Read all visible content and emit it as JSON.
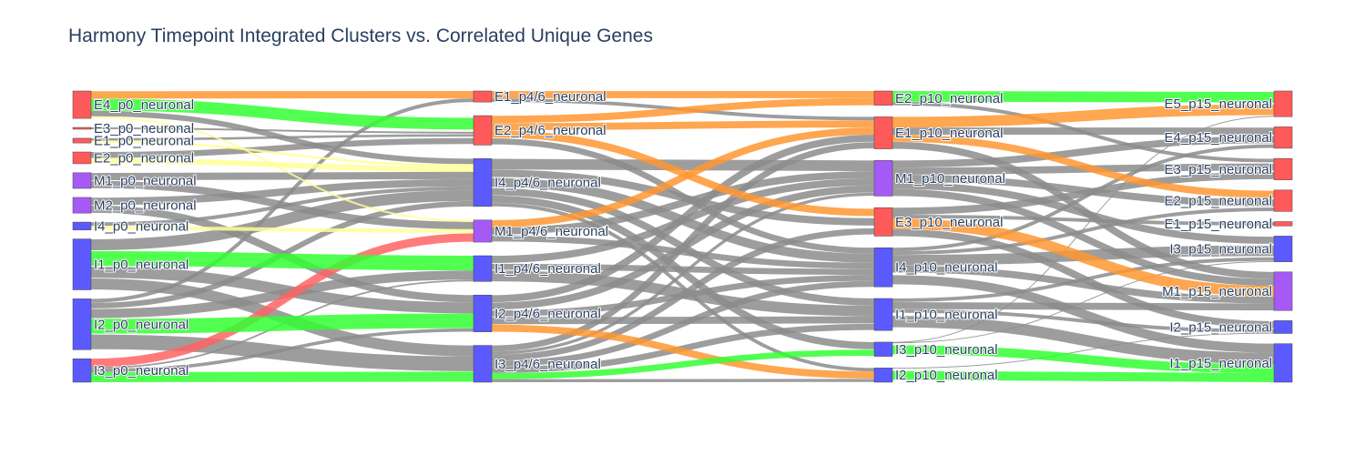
{
  "title": "Harmony Timepoint Integrated Clusters vs. Correlated Unique Genes",
  "colors": {
    "E": "#ff5a5a",
    "I": "#5a5aff",
    "M": "#a55af5",
    "link_gray": "#8c8c8c",
    "link_green": "#32ff32",
    "link_orange": "#ff9632",
    "link_yellow": "#ffff96",
    "link_red": "#ff6464",
    "node_border": "#444444"
  },
  "chart_data": {
    "type": "sankey",
    "columns": [
      [
        {
          "id": "E4_p0",
          "label": "E4_p0_neuronal",
          "type": "E",
          "value": 7
        },
        {
          "id": "E3_p0",
          "label": "E3_p0_neuronal",
          "type": "E",
          "value": 0.4
        },
        {
          "id": "E1_p0",
          "label": "E1_p0_neuronal",
          "type": "E",
          "value": 1.2
        },
        {
          "id": "E2_p0",
          "label": "E2_p0_neuronal",
          "type": "E",
          "value": 3
        },
        {
          "id": "M1_p0",
          "label": "M1_p0_neuronal",
          "type": "M",
          "value": 4
        },
        {
          "id": "M2_p0",
          "label": "M2_p0_neuronal",
          "type": "M",
          "value": 4
        },
        {
          "id": "I4_p0",
          "label": "I4_p0_neuronal",
          "type": "I",
          "value": 2
        },
        {
          "id": "I1_p0",
          "label": "I1_p0_neuronal",
          "type": "I",
          "value": 13
        },
        {
          "id": "I2_p0",
          "label": "I2_p0_neuronal",
          "type": "I",
          "value": 13
        },
        {
          "id": "I3_p0",
          "label": "I3_p0_neuronal",
          "type": "I",
          "value": 6
        }
      ],
      [
        {
          "id": "E1_p46",
          "label": "E1_p4/6_neuronal",
          "type": "E",
          "value": 3
        },
        {
          "id": "E2_p46",
          "label": "E2_p4/6_neuronal",
          "type": "E",
          "value": 8
        },
        {
          "id": "I4_p46",
          "label": "I4_p4/6_neuronal",
          "type": "I",
          "value": 13
        },
        {
          "id": "M1_p46",
          "label": "M1_p4/6_neuronal",
          "type": "M",
          "value": 6
        },
        {
          "id": "I1_p46",
          "label": "I1_p4/6_neuronal",
          "type": "I",
          "value": 7
        },
        {
          "id": "I2_p46",
          "label": "I2_p4/6_neuronal",
          "type": "I",
          "value": 10
        },
        {
          "id": "I3_p46",
          "label": "I3_p4/6_neuronal",
          "type": "I",
          "value": 10
        }
      ],
      [
        {
          "id": "E2_p10",
          "label": "E2_p10_neuronal",
          "type": "E",
          "value": 4
        },
        {
          "id": "E1_p10",
          "label": "E1_p10_neuronal",
          "type": "E",
          "value": 9
        },
        {
          "id": "M1_p10",
          "label": "M1_p10_neuronal",
          "type": "M",
          "value": 10
        },
        {
          "id": "E3_p10",
          "label": "E3_p10_neuronal",
          "type": "E",
          "value": 8
        },
        {
          "id": "I4_p10",
          "label": "I4_p10_neuronal",
          "type": "I",
          "value": 11
        },
        {
          "id": "I1_p10",
          "label": "I1_p10_neuronal",
          "type": "I",
          "value": 9
        },
        {
          "id": "I3_p10",
          "label": "I3_p10_neuronal",
          "type": "I",
          "value": 4
        },
        {
          "id": "I2_p10",
          "label": "I2_p10_neuronal",
          "type": "I",
          "value": 4
        }
      ],
      [
        {
          "id": "E5_p15",
          "label": "E5_p15_neuronal",
          "type": "E",
          "value": 6
        },
        {
          "id": "E4_p15",
          "label": "E4_p15_neuronal",
          "type": "E",
          "value": 5
        },
        {
          "id": "E3_p15",
          "label": "E3_p15_neuronal",
          "type": "E",
          "value": 5
        },
        {
          "id": "E2_p15",
          "label": "E2_p15_neuronal",
          "type": "E",
          "value": 5
        },
        {
          "id": "E1_p15",
          "label": "E1_p15_neuronal",
          "type": "E",
          "value": 1
        },
        {
          "id": "I3_p15",
          "label": "I3_p15_neuronal",
          "type": "I",
          "value": 6
        },
        {
          "id": "M1_p15",
          "label": "M1_p15_neuronal",
          "type": "M",
          "value": 9
        },
        {
          "id": "I2_p15",
          "label": "I2_p15_neuronal",
          "type": "I",
          "value": 3
        },
        {
          "id": "I1_p15",
          "label": "I1_p15_neuronal",
          "type": "I",
          "value": 9
        }
      ]
    ],
    "links": [
      {
        "s": "E4_p0",
        "t": "E1_p46",
        "v": 2,
        "c": "orange"
      },
      {
        "s": "E4_p0",
        "t": "E2_p46",
        "v": 3,
        "c": "green"
      },
      {
        "s": "E4_p0",
        "t": "I4_p46",
        "v": 1.5,
        "c": "gray"
      },
      {
        "s": "E4_p0",
        "t": "M1_p46",
        "v": 0.5,
        "c": "yellow"
      },
      {
        "s": "E3_p0",
        "t": "E2_p46",
        "v": 0.4,
        "c": "gray"
      },
      {
        "s": "E1_p0",
        "t": "E2_p46",
        "v": 0.6,
        "c": "gray"
      },
      {
        "s": "E1_p0",
        "t": "I4_p46",
        "v": 0.6,
        "c": "yellow"
      },
      {
        "s": "E2_p0",
        "t": "E2_p46",
        "v": 1.5,
        "c": "gray"
      },
      {
        "s": "E2_p0",
        "t": "I4_p46",
        "v": 1.5,
        "c": "yellow"
      },
      {
        "s": "M1_p0",
        "t": "I4_p46",
        "v": 2,
        "c": "gray"
      },
      {
        "s": "M1_p0",
        "t": "M1_p46",
        "v": 2,
        "c": "gray"
      },
      {
        "s": "M2_p0",
        "t": "I4_p46",
        "v": 2,
        "c": "gray"
      },
      {
        "s": "M2_p0",
        "t": "I2_p46",
        "v": 2,
        "c": "gray"
      },
      {
        "s": "I4_p0",
        "t": "I4_p46",
        "v": 1,
        "c": "gray"
      },
      {
        "s": "I4_p0",
        "t": "M1_p46",
        "v": 1,
        "c": "yellow"
      },
      {
        "s": "I1_p0",
        "t": "I4_p46",
        "v": 3,
        "c": "gray"
      },
      {
        "s": "I1_p0",
        "t": "I1_p46",
        "v": 4,
        "c": "green"
      },
      {
        "s": "I1_p0",
        "t": "I2_p46",
        "v": 3,
        "c": "gray"
      },
      {
        "s": "I1_p0",
        "t": "I3_p46",
        "v": 3,
        "c": "gray"
      },
      {
        "s": "I2_p0",
        "t": "E1_p46",
        "v": 1,
        "c": "gray"
      },
      {
        "s": "I2_p0",
        "t": "I4_p46",
        "v": 1.5,
        "c": "gray"
      },
      {
        "s": "I2_p0",
        "t": "I1_p46",
        "v": 2.5,
        "c": "gray"
      },
      {
        "s": "I2_p0",
        "t": "I2_p46",
        "v": 4,
        "c": "green"
      },
      {
        "s": "I2_p0",
        "t": "I3_p46",
        "v": 4,
        "c": "gray"
      },
      {
        "s": "I3_p0",
        "t": "M1_p46",
        "v": 2.5,
        "c": "red"
      },
      {
        "s": "I3_p0",
        "t": "I1_p46",
        "v": 0.5,
        "c": "gray"
      },
      {
        "s": "I3_p0",
        "t": "I2_p46",
        "v": 1,
        "c": "gray"
      },
      {
        "s": "I3_p0",
        "t": "I3_p46",
        "v": 3,
        "c": "green"
      },
      {
        "s": "E1_p46",
        "t": "E2_p10",
        "v": 2,
        "c": "orange"
      },
      {
        "s": "E1_p46",
        "t": "E1_p10",
        "v": 1,
        "c": "gray"
      },
      {
        "s": "E2_p46",
        "t": "E2_p10",
        "v": 2,
        "c": "orange"
      },
      {
        "s": "E2_p46",
        "t": "E1_p10",
        "v": 2,
        "c": "orange"
      },
      {
        "s": "E2_p46",
        "t": "E3_p10",
        "v": 2,
        "c": "orange"
      },
      {
        "s": "E2_p46",
        "t": "I4_p10",
        "v": 2,
        "c": "gray"
      },
      {
        "s": "I4_p46",
        "t": "M1_p10",
        "v": 3,
        "c": "gray"
      },
      {
        "s": "I4_p46",
        "t": "E3_p10",
        "v": 2,
        "c": "gray"
      },
      {
        "s": "I4_p46",
        "t": "I4_p10",
        "v": 3,
        "c": "gray"
      },
      {
        "s": "I4_p46",
        "t": "I1_p10",
        "v": 2,
        "c": "gray"
      },
      {
        "s": "I4_p46",
        "t": "I2_p10",
        "v": 1,
        "c": "gray"
      },
      {
        "s": "I4_p46",
        "t": "I3_p10",
        "v": 2,
        "c": "gray"
      },
      {
        "s": "M1_p46",
        "t": "E1_p10",
        "v": 2,
        "c": "orange"
      },
      {
        "s": "M1_p46",
        "t": "M1_p10",
        "v": 2,
        "c": "gray"
      },
      {
        "s": "M1_p46",
        "t": "I4_p10",
        "v": 2,
        "c": "gray"
      },
      {
        "s": "I1_p46",
        "t": "M1_p10",
        "v": 2,
        "c": "gray"
      },
      {
        "s": "I1_p46",
        "t": "I4_p10",
        "v": 2,
        "c": "gray"
      },
      {
        "s": "I1_p46",
        "t": "I1_p10",
        "v": 3,
        "c": "gray"
      },
      {
        "s": "I2_p46",
        "t": "E1_p10",
        "v": 2,
        "c": "gray"
      },
      {
        "s": "I2_p46",
        "t": "M1_p10",
        "v": 2,
        "c": "gray"
      },
      {
        "s": "I2_p46",
        "t": "I4_p10",
        "v": 2,
        "c": "gray"
      },
      {
        "s": "I2_p46",
        "t": "I1_p10",
        "v": 2,
        "c": "gray"
      },
      {
        "s": "I2_p46",
        "t": "I2_p10",
        "v": 2,
        "c": "orange"
      },
      {
        "s": "I3_p46",
        "t": "E1_p10",
        "v": 2,
        "c": "gray"
      },
      {
        "s": "I3_p46",
        "t": "M1_p10",
        "v": 1,
        "c": "gray"
      },
      {
        "s": "I3_p46",
        "t": "E3_p10",
        "v": 2,
        "c": "gray"
      },
      {
        "s": "I3_p46",
        "t": "I4_p10",
        "v": 2,
        "c": "gray"
      },
      {
        "s": "I3_p46",
        "t": "I1_p10",
        "v": 2,
        "c": "gray"
      },
      {
        "s": "I3_p46",
        "t": "I3_p10",
        "v": 2,
        "c": "green"
      },
      {
        "s": "I3_p46",
        "t": "I2_p10",
        "v": 1,
        "c": "gray"
      },
      {
        "s": "E2_p10",
        "t": "E5_p15",
        "v": 3,
        "c": "green"
      },
      {
        "s": "E2_p10",
        "t": "E3_p15",
        "v": 1,
        "c": "gray"
      },
      {
        "s": "E1_p10",
        "t": "E5_p15",
        "v": 3,
        "c": "orange"
      },
      {
        "s": "E1_p10",
        "t": "E4_p15",
        "v": 2,
        "c": "gray"
      },
      {
        "s": "E1_p10",
        "t": "E2_p15",
        "v": 2,
        "c": "orange"
      },
      {
        "s": "E1_p10",
        "t": "M1_p15",
        "v": 2,
        "c": "gray"
      },
      {
        "s": "M1_p10",
        "t": "E4_p15",
        "v": 2,
        "c": "gray"
      },
      {
        "s": "M1_p10",
        "t": "E3_p15",
        "v": 2,
        "c": "gray"
      },
      {
        "s": "M1_p10",
        "t": "E2_p15",
        "v": 2,
        "c": "gray"
      },
      {
        "s": "M1_p10",
        "t": "I3_p15",
        "v": 2,
        "c": "gray"
      },
      {
        "s": "M1_p10",
        "t": "M1_p15",
        "v": 2,
        "c": "gray"
      },
      {
        "s": "E3_p10",
        "t": "E3_p15",
        "v": 2,
        "c": "gray"
      },
      {
        "s": "E3_p10",
        "t": "E1_p15",
        "v": 1,
        "c": "gray"
      },
      {
        "s": "E3_p10",
        "t": "M1_p15",
        "v": 3,
        "c": "orange"
      },
      {
        "s": "E3_p10",
        "t": "I2_p15",
        "v": 2,
        "c": "gray"
      },
      {
        "s": "I4_p10",
        "t": "E4_p15",
        "v": 1,
        "c": "gray"
      },
      {
        "s": "I4_p10",
        "t": "E2_p15",
        "v": 1,
        "c": "gray"
      },
      {
        "s": "I4_p10",
        "t": "I3_p15",
        "v": 3,
        "c": "gray"
      },
      {
        "s": "I4_p10",
        "t": "M1_p15",
        "v": 2,
        "c": "gray"
      },
      {
        "s": "I4_p10",
        "t": "I1_p15",
        "v": 4,
        "c": "gray"
      },
      {
        "s": "I1_p10",
        "t": "I3_p15",
        "v": 1,
        "c": "gray"
      },
      {
        "s": "I1_p10",
        "t": "M1_p15",
        "v": 2,
        "c": "gray"
      },
      {
        "s": "I1_p10",
        "t": "I2_p15",
        "v": 1,
        "c": "gray"
      },
      {
        "s": "I1_p10",
        "t": "I1_p15",
        "v": 5,
        "c": "gray"
      },
      {
        "s": "I3_p10",
        "t": "E5_p15",
        "v": 0,
        "c": "gray"
      },
      {
        "s": "I3_p10",
        "t": "I3_p15",
        "v": 0,
        "c": "gray"
      },
      {
        "s": "I3_p10",
        "t": "I1_p15",
        "v": 4,
        "c": "green"
      },
      {
        "s": "I2_p10",
        "t": "I2_p15",
        "v": 0,
        "c": "gray"
      },
      {
        "s": "I2_p10",
        "t": "I1_p15",
        "v": 4,
        "c": "green"
      }
    ]
  }
}
